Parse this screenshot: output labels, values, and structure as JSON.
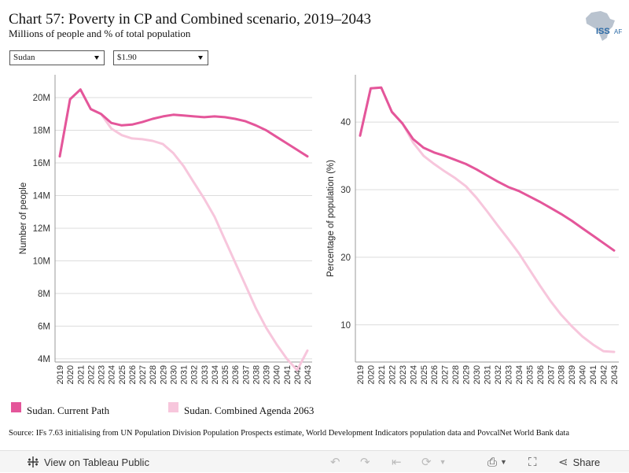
{
  "header": {
    "title": "Chart 57: Poverty in CP and Combined scenario, 2019–2043",
    "subtitle": "Millions of people and % of total population",
    "logo_text": "ISS",
    "logo_text_2": "AFI"
  },
  "filters": {
    "country": "Sudan",
    "poverty_line": "$1.90"
  },
  "colors": {
    "current_path": "#e4569a",
    "combined_agenda": "#f7c6dc",
    "grid": "#dcdcdc",
    "axis": "#999999"
  },
  "legend": [
    {
      "label": "Sudan. Current Path",
      "color": "#e4569a"
    },
    {
      "label": "Sudan. Combined Agenda 2063",
      "color": "#f7c6dc"
    }
  ],
  "source": "Source: IFs 7.63 initialising from UN Population Division Population Prospects estimate, World Development Indicators population data and PovcalNet World Bank data",
  "toolbar": {
    "view_label": "View on Tableau Public",
    "share_label": "Share"
  },
  "chart_data": [
    {
      "type": "line",
      "xlabel": "",
      "ylabel": "Number of people",
      "ylim": [
        3.8,
        21.4
      ],
      "yticks": [
        4,
        6,
        8,
        10,
        12,
        14,
        16,
        18,
        20
      ],
      "ytick_labels": [
        "4M",
        "6M",
        "8M",
        "10M",
        "12M",
        "14M",
        "16M",
        "18M",
        "20M"
      ],
      "x": [
        2019,
        2020,
        2021,
        2022,
        2023,
        2024,
        2025,
        2026,
        2027,
        2028,
        2029,
        2030,
        2031,
        2032,
        2033,
        2034,
        2035,
        2036,
        2037,
        2038,
        2039,
        2040,
        2041,
        2042,
        2043
      ],
      "series": [
        {
          "name": "Sudan. Current Path",
          "values": [
            16.4,
            19.9,
            20.5,
            19.3,
            19.0,
            18.45,
            18.3,
            18.35,
            18.5,
            18.7,
            18.85,
            18.95,
            18.9,
            18.85,
            18.8,
            18.85,
            18.8,
            18.7,
            18.55,
            18.3,
            18.0,
            17.6,
            17.2,
            16.8,
            16.4
          ]
        },
        {
          "name": "Sudan. Combined Agenda 2063",
          "values": [
            16.4,
            19.9,
            20.5,
            19.3,
            19.0,
            18.1,
            17.7,
            17.5,
            17.45,
            17.35,
            17.15,
            16.6,
            15.8,
            14.8,
            13.8,
            12.7,
            11.3,
            9.9,
            8.5,
            7.1,
            5.9,
            4.9,
            4.0,
            3.3,
            4.5
          ]
        }
      ]
    },
    {
      "type": "line",
      "xlabel": "",
      "ylabel": "Percentage of population (%)",
      "ylim": [
        4.5,
        47
      ],
      "yticks": [
        10,
        20,
        30,
        40
      ],
      "ytick_labels": [
        "10",
        "20",
        "30",
        "40"
      ],
      "x": [
        2019,
        2020,
        2021,
        2022,
        2023,
        2024,
        2025,
        2026,
        2027,
        2028,
        2029,
        2030,
        2031,
        2032,
        2033,
        2034,
        2035,
        2036,
        2037,
        2038,
        2039,
        2040,
        2041,
        2042,
        2043
      ],
      "series": [
        {
          "name": "Sudan. Current Path",
          "values": [
            38.0,
            45.0,
            45.1,
            41.5,
            39.8,
            37.5,
            36.2,
            35.5,
            35.0,
            34.4,
            33.8,
            33.0,
            32.1,
            31.2,
            30.4,
            29.8,
            29.0,
            28.2,
            27.3,
            26.4,
            25.4,
            24.3,
            23.2,
            22.1,
            21.0
          ]
        },
        {
          "name": "Sudan. Combined Agenda 2063",
          "values": [
            38.0,
            45.0,
            45.1,
            41.5,
            39.8,
            37.0,
            35.0,
            33.8,
            32.7,
            31.7,
            30.5,
            28.8,
            26.8,
            24.7,
            22.7,
            20.6,
            18.2,
            15.8,
            13.5,
            11.5,
            9.8,
            8.3,
            7.1,
            6.1,
            6.0
          ]
        }
      ]
    }
  ]
}
